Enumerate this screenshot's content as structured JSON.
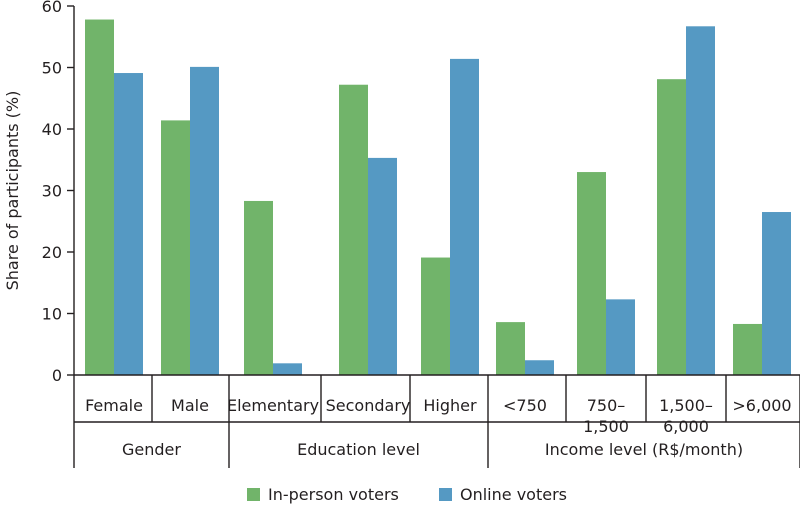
{
  "chart_data": {
    "type": "bar",
    "ylabel": "Share of participants (%)",
    "ylim": [
      0,
      60
    ],
    "yticks": [
      0,
      10,
      20,
      30,
      40,
      50,
      60
    ],
    "grid": false,
    "legend_position": "bottom-center",
    "colors": {
      "in_person": "#71b46a",
      "online": "#5599c3"
    },
    "groups": [
      {
        "name": "Gender",
        "categories": [
          [
            "Female"
          ],
          [
            "Male"
          ]
        ]
      },
      {
        "name": "Education level",
        "categories": [
          [
            "Elementary"
          ],
          [
            "Secondary"
          ],
          [
            "Higher"
          ]
        ]
      },
      {
        "name": "Income level (R$/month)",
        "categories": [
          [
            "<750"
          ],
          [
            "750–",
            "1,500"
          ],
          [
            "1,500–",
            "6,000"
          ],
          [
            ">6,000"
          ]
        ]
      }
    ],
    "series": [
      {
        "name": "In-person voters",
        "values": [
          57.8,
          41.4,
          28.3,
          47.2,
          19.1,
          8.6,
          33.0,
          48.1,
          8.3
        ]
      },
      {
        "name": "Online voters",
        "values": [
          49.1,
          50.1,
          1.9,
          35.3,
          51.4,
          2.4,
          12.3,
          56.7,
          26.5
        ]
      }
    ]
  }
}
